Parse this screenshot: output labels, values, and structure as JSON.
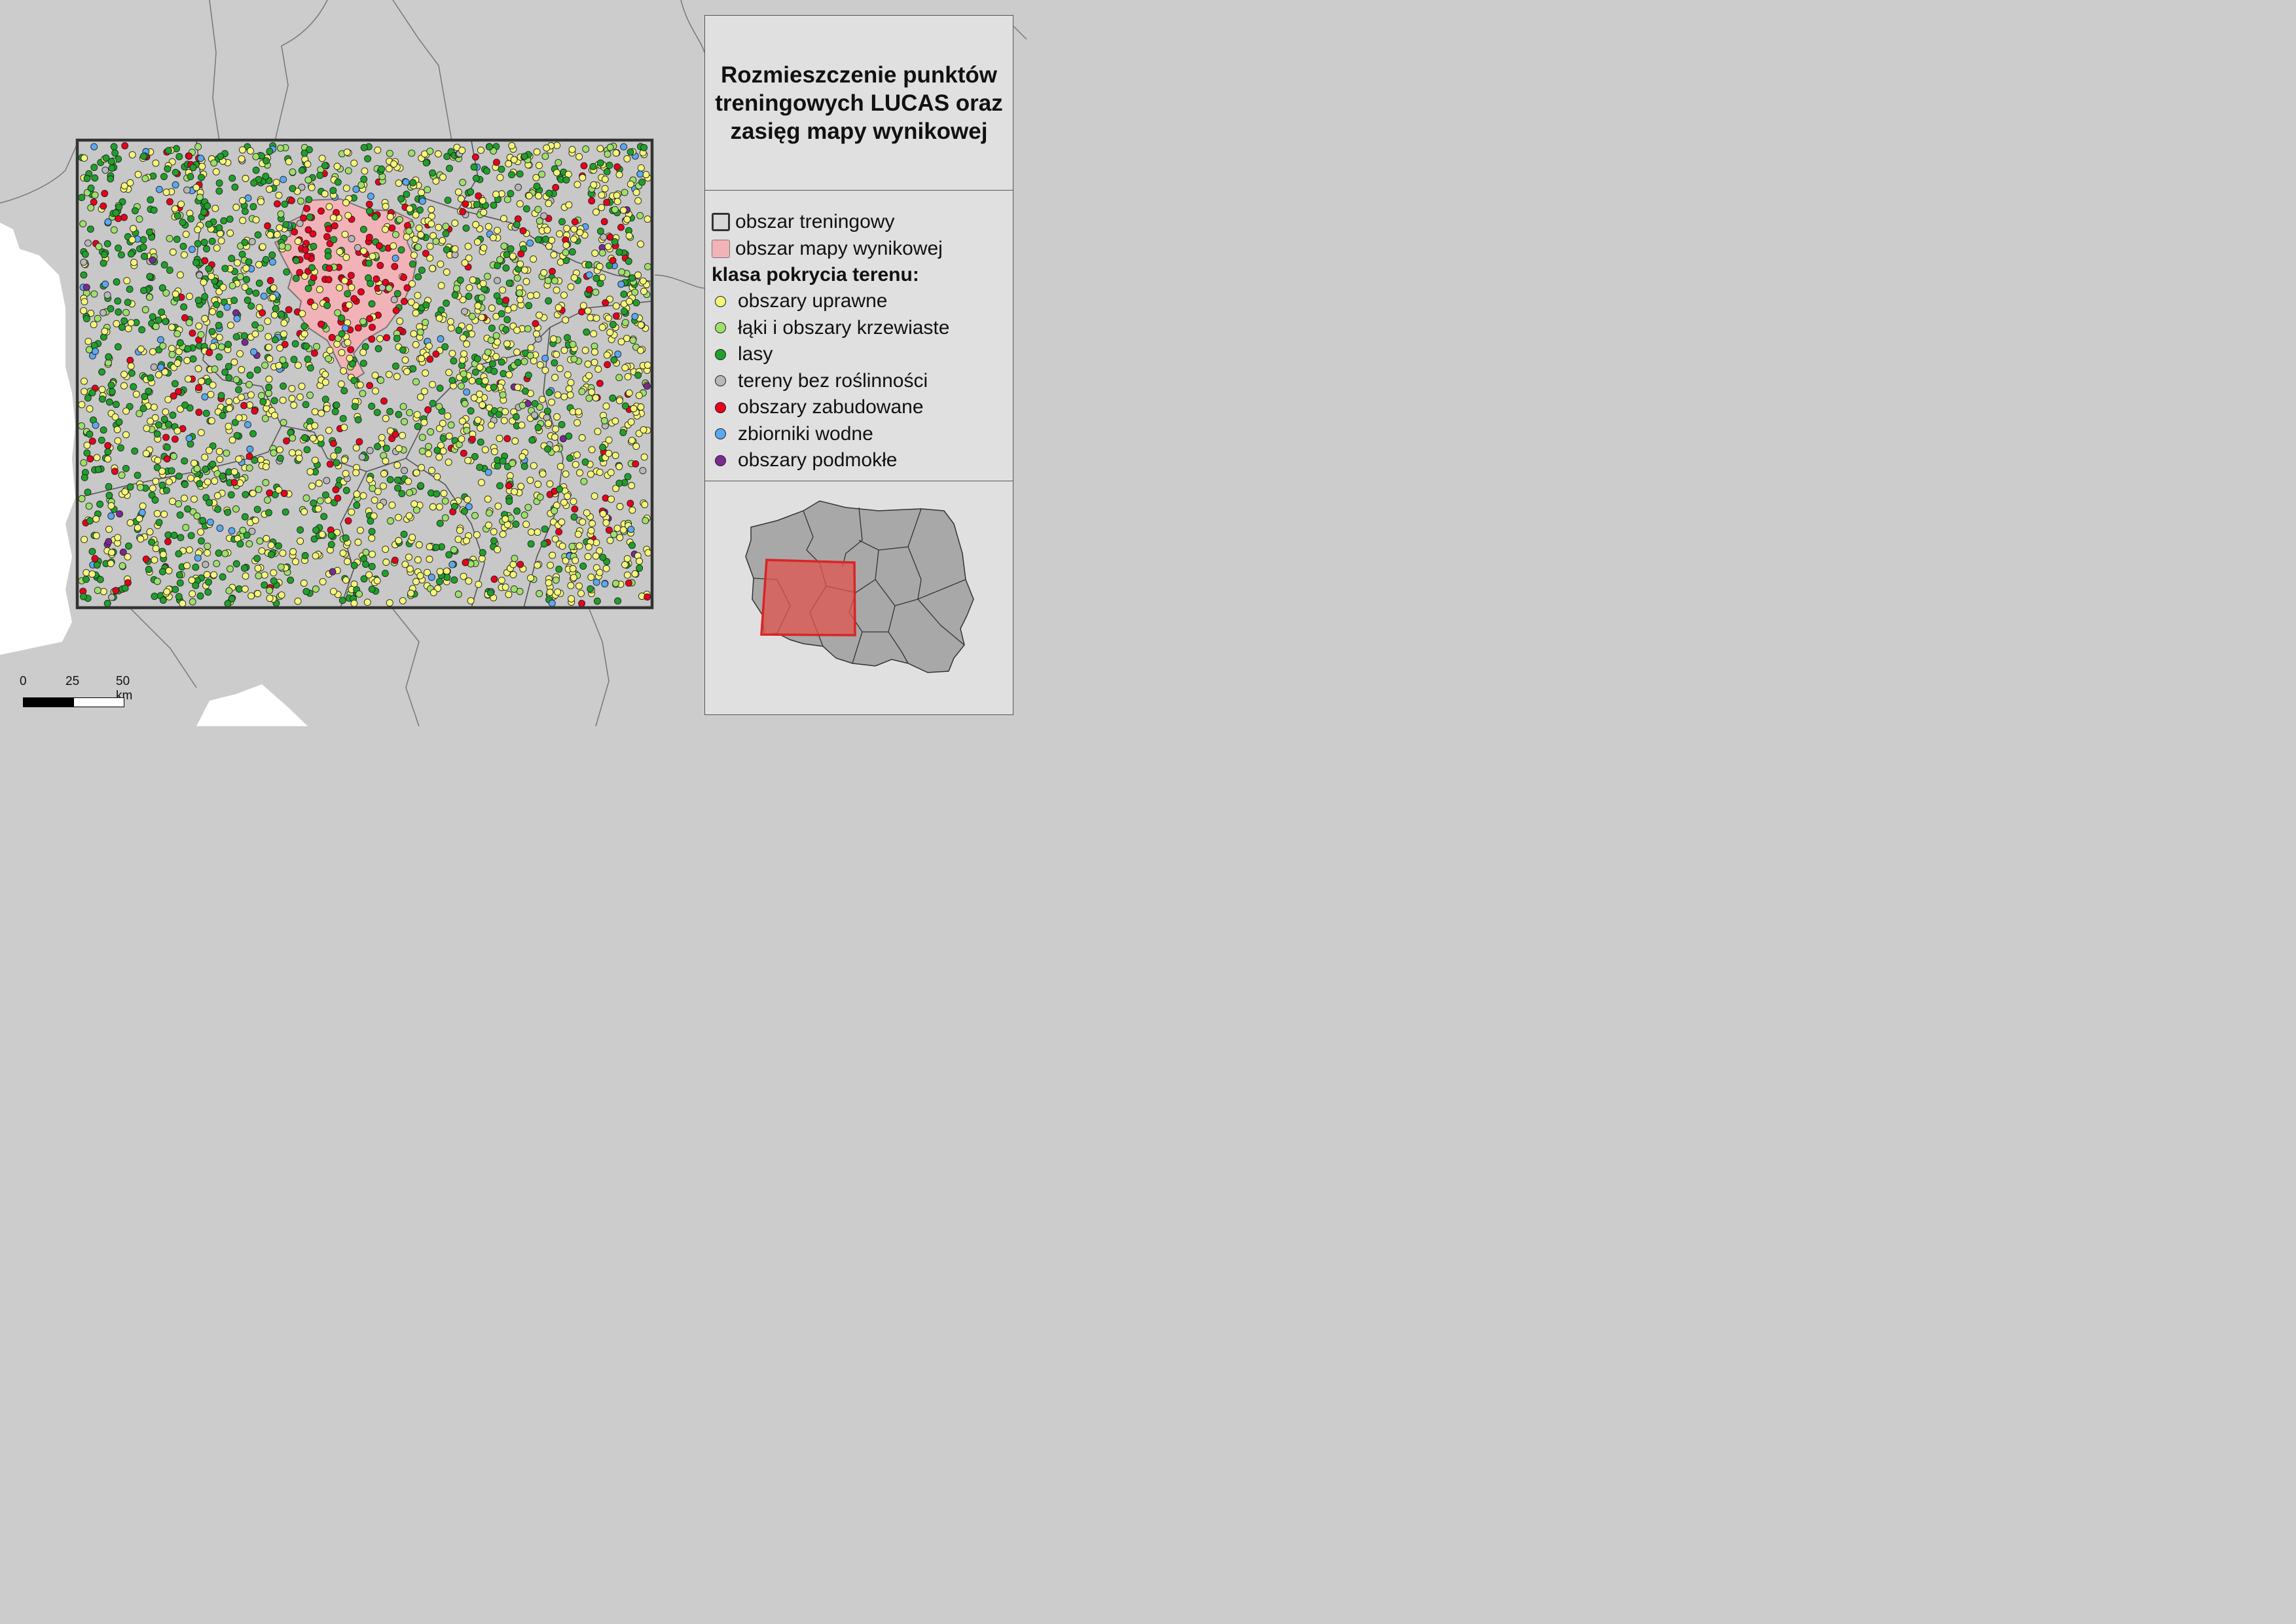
{
  "title": "Rozmieszczenie punktów treningowych LUCAS oraz zasięg mapy wynikowej",
  "legend": {
    "training_area_label": "obszar treningowy",
    "result_area_label": "obszar mapy wynikowej",
    "class_heading": "klasa pokrycia terenu:",
    "classes": [
      {
        "label": "obszary uprawne",
        "color": "#f5f57a"
      },
      {
        "label": "łąki i obszary krzewiaste",
        "color": "#9ee06a"
      },
      {
        "label": "lasy",
        "color": "#1fa02a"
      },
      {
        "label": "tereny bez roślinności",
        "color": "#b8b8b8"
      },
      {
        "label": "obszary zabudowane",
        "color": "#e8001c"
      },
      {
        "label": "zbiorniki wodne",
        "color": "#5aa8f0"
      },
      {
        "label": "obszary podmokłe",
        "color": "#7a2a90"
      }
    ]
  },
  "scale_bar": {
    "labels": [
      "0",
      "25",
      "50 km"
    ]
  },
  "colors": {
    "background": "#cccccc",
    "panel": "#e0e0e0",
    "training_area_border": "#333333",
    "result_area_fill": "#f2b3b8",
    "inset_highlight": "#e0544e"
  },
  "icons": {
    "point_marker": "circle",
    "training_area_swatch": "square-outline",
    "result_area_swatch": "square-filled"
  }
}
